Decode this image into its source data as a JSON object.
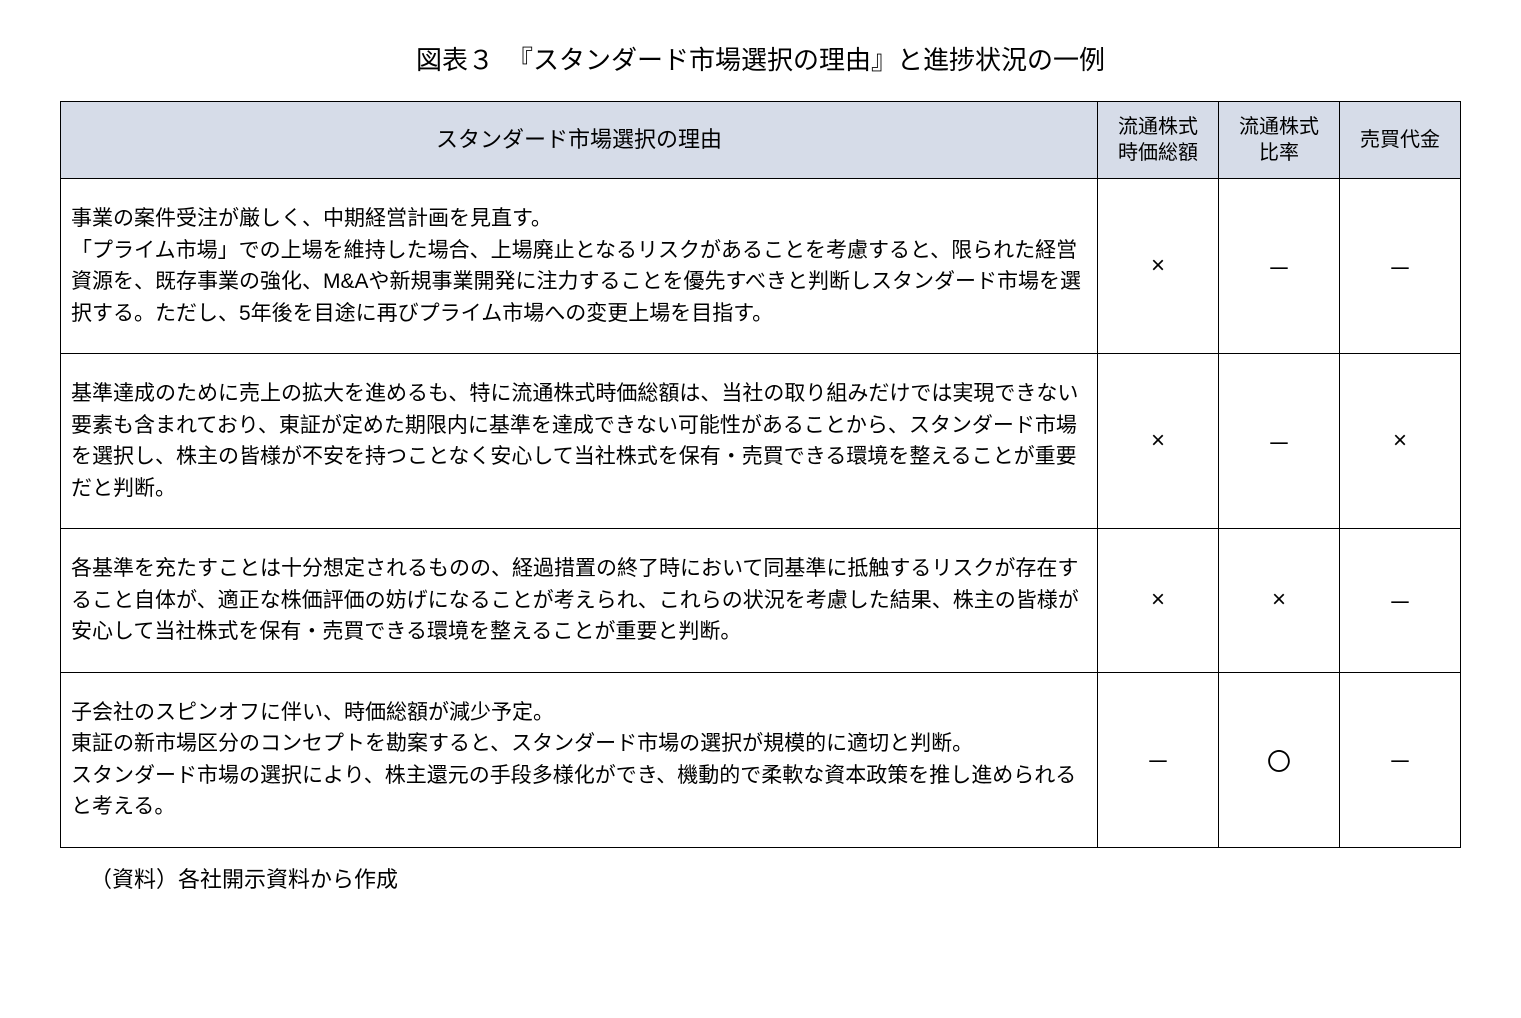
{
  "title": "図表３　『スタンダード市場選択の理由』と進捗状況の一例",
  "columns": {
    "reason": "スタンダード市場選択の理由",
    "col1": "流通株式\n時価総額",
    "col2": "流通株式\n比率",
    "col3": "売買代金"
  },
  "rows": [
    {
      "reason": "事業の案件受注が厳しく、中期経営計画を見直す。\n「プライム市場」での上場を維持した場合、上場廃止となるリスクがあることを考慮すると、限られた経営資源を、既存事業の強化、M&Aや新規事業開発に注力することを優先すべきと判断しスタンダード市場を選択する。ただし、5年後を目途に再びプライム市場への変更上場を目指す。",
      "c1": "×",
      "c2": "－",
      "c3": "－"
    },
    {
      "reason": "基準達成のために売上の拡大を進めるも、特に流通株式時価総額は、当社の取り組みだけでは実現できない要素も含まれており、東証が定めた期限内に基準を達成できない可能性があることから、スタンダード市場を選択し、株主の皆様が不安を持つことなく安心して当社株式を保有・売買できる環境を整えることが重要だと判断。",
      "c1": "×",
      "c2": "－",
      "c3": "×"
    },
    {
      "reason": "各基準を充たすことは十分想定されるものの、経過措置の終了時において同基準に抵触するリスクが存在すること自体が、適正な株価評価の妨げになることが考えられ、これらの状況を考慮した結果、株主の皆様が安心して当社株式を保有・売買できる環境を整えることが重要と判断。",
      "c1": "×",
      "c2": "×",
      "c3": "－"
    },
    {
      "reason": "子会社のスピンオフに伴い、時価総額が減少予定。\n東証の新市場区分のコンセプトを勘案すると、スタンダード市場の選択が規模的に適切と判断。\nスタンダード市場の選択により、株主還元の手段多様化ができ、機動的で柔軟な資本政策を推し進められると考える。",
      "c1": "－",
      "c2": "〇",
      "c3": "－"
    }
  ],
  "source": "（資料）各社開示資料から作成",
  "style": {
    "header_bg": "#d6dce8",
    "border_color": "#000000",
    "background": "#ffffff",
    "title_fontsize": 26,
    "body_fontsize": 21,
    "mark_fontsize": 24
  }
}
